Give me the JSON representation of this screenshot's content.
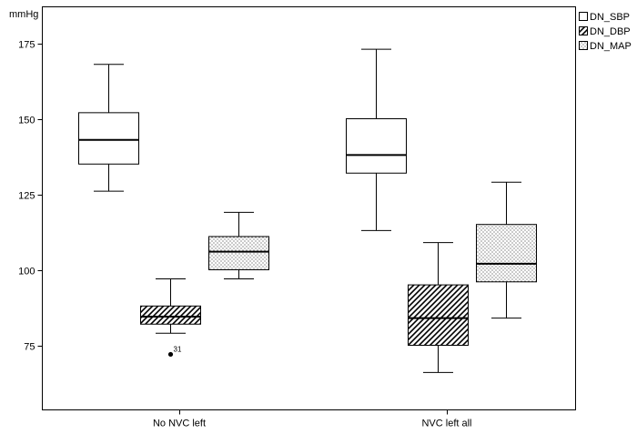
{
  "chart_data": {
    "type": "box",
    "ylabel": "mmHg",
    "ylim": [
      62,
      184
    ],
    "yticks": [
      75,
      100,
      125,
      150,
      175
    ],
    "categories": [
      "No NVC left",
      "NVC left all"
    ],
    "legend_position": "top-right",
    "grid": false,
    "series": [
      {
        "name": "DN_SBP",
        "pattern": "plain",
        "boxes": [
          {
            "min": 126,
            "q1": 135,
            "median": 143,
            "q3": 152,
            "max": 168
          },
          {
            "min": 113,
            "q1": 132,
            "median": 138,
            "q3": 150,
            "max": 173
          }
        ]
      },
      {
        "name": "DN_DBP",
        "pattern": "hatch",
        "boxes": [
          {
            "min": 79,
            "q1": 82,
            "median": 84.5,
            "q3": 88,
            "max": 97
          },
          {
            "min": 66,
            "q1": 75,
            "median": 84,
            "q3": 95,
            "max": 109
          }
        ]
      },
      {
        "name": "DN_MAP",
        "pattern": "dots",
        "boxes": [
          {
            "min": 97,
            "q1": 100,
            "median": 106,
            "q3": 111,
            "max": 119
          },
          {
            "min": 84,
            "q1": 96,
            "median": 102,
            "q3": 115,
            "max": 129
          }
        ]
      }
    ],
    "outliers": [
      {
        "category": "No NVC left",
        "series": "DN_DBP",
        "value": 72,
        "label": "31"
      }
    ]
  }
}
